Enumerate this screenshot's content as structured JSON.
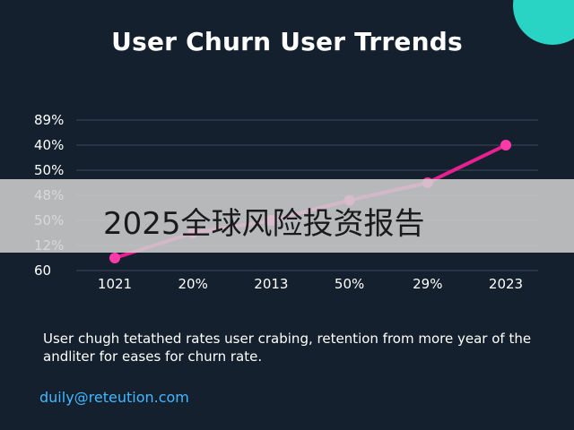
{
  "title": "User Churn User Trrends",
  "overlay_text": "2025全球风险投资报告",
  "description": "User chugh tetathed rates user crabing, retention from more year of the andliter for eases for churn rate.",
  "email": "duily@reteution.com",
  "colors": {
    "background": "#14202e",
    "line": "#e6208f",
    "accent_circle": "#2ad4c5",
    "email": "#41b8ff"
  },
  "chart_data": {
    "type": "line",
    "categories": [
      "1021",
      "20%",
      "2013",
      "50%",
      "29%",
      "2023"
    ],
    "y_tick_labels": [
      "89%",
      "40%",
      "50%",
      "48%",
      "50%",
      "12%",
      "60"
    ],
    "values": [
      0.5,
      1.5,
      2.0,
      2.8,
      3.5,
      5.0
    ],
    "grid": true
  }
}
